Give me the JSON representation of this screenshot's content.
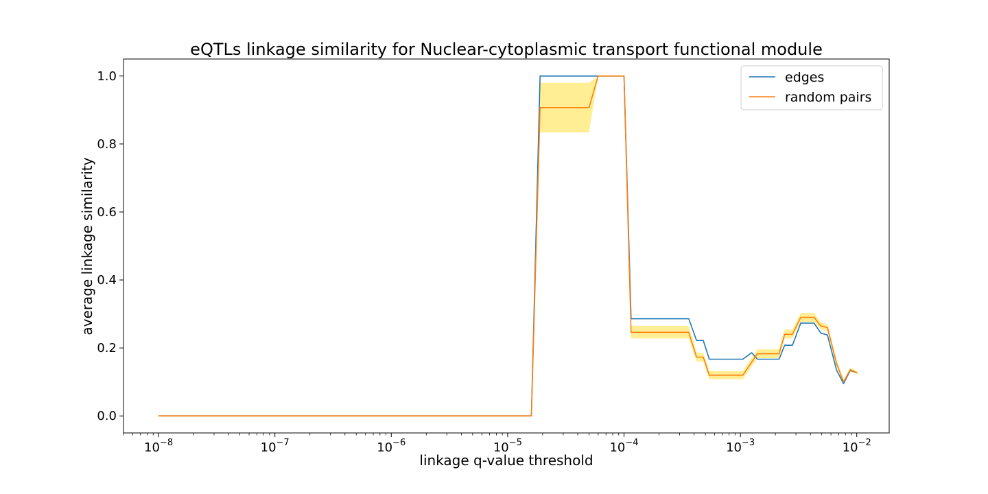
{
  "chart_data": {
    "type": "line",
    "title": "eQTLs linkage similarity for Nuclear-cytoplasmic transport functional module",
    "xlabel": "linkage q-value threshold",
    "ylabel": "average linkage similarity",
    "xscale": "log",
    "xlim": [
      5e-09,
      0.019
    ],
    "ylim": [
      -0.05,
      1.05
    ],
    "x_tick_labels": [
      {
        "exp": -8,
        "label": "10",
        "sup": "−8"
      },
      {
        "exp": -7,
        "label": "10",
        "sup": "−7"
      },
      {
        "exp": -6,
        "label": "10",
        "sup": "−6"
      },
      {
        "exp": -5,
        "label": "10",
        "sup": "−5"
      },
      {
        "exp": -4,
        "label": "10",
        "sup": "−4"
      },
      {
        "exp": -3,
        "label": "10",
        "sup": "−3"
      },
      {
        "exp": -2,
        "label": "10",
        "sup": "−2"
      }
    ],
    "y_ticks": [
      0.0,
      0.2,
      0.4,
      0.6,
      0.8,
      1.0
    ],
    "y_tick_labels": [
      "0.0",
      "0.2",
      "0.4",
      "0.6",
      "0.8",
      "1.0"
    ],
    "legend_position": "top-right",
    "grid": false,
    "series": [
      {
        "name": "edges",
        "color": "#1f77b4",
        "points": [
          [
            1e-08,
            0.0
          ],
          [
            1.6e-05,
            0.0
          ],
          [
            1.9e-05,
            1.0
          ],
          [
            5e-05,
            1.0
          ],
          [
            6e-05,
            1.0
          ],
          [
            0.0001,
            1.0
          ],
          [
            0.000115,
            0.286
          ],
          [
            0.0002,
            0.286
          ],
          [
            0.00036,
            0.286
          ],
          [
            0.00042,
            0.222
          ],
          [
            0.00048,
            0.222
          ],
          [
            0.00054,
            0.167
          ],
          [
            0.00105,
            0.167
          ],
          [
            0.00125,
            0.186
          ],
          [
            0.0014,
            0.167
          ],
          [
            0.00215,
            0.167
          ],
          [
            0.0024,
            0.208
          ],
          [
            0.0028,
            0.208
          ],
          [
            0.0033,
            0.273
          ],
          [
            0.0043,
            0.273
          ],
          [
            0.0049,
            0.244
          ],
          [
            0.0056,
            0.238
          ],
          [
            0.0067,
            0.135
          ],
          [
            0.0077,
            0.095
          ],
          [
            0.0088,
            0.134
          ],
          [
            0.0101,
            0.127
          ]
        ]
      },
      {
        "name": "random pairs",
        "color": "#ff7f0e",
        "points": [
          [
            1e-08,
            0.0
          ],
          [
            1.6e-05,
            0.0
          ],
          [
            1.9e-05,
            0.907
          ],
          [
            5e-05,
            0.907
          ],
          [
            6e-05,
            1.0
          ],
          [
            0.0001,
            1.0
          ],
          [
            0.000115,
            0.246
          ],
          [
            0.0002,
            0.246
          ],
          [
            0.00036,
            0.246
          ],
          [
            0.00042,
            0.173
          ],
          [
            0.00048,
            0.173
          ],
          [
            0.00054,
            0.12
          ],
          [
            0.00105,
            0.12
          ],
          [
            0.0014,
            0.183
          ],
          [
            0.00215,
            0.183
          ],
          [
            0.0024,
            0.24
          ],
          [
            0.0028,
            0.24
          ],
          [
            0.0033,
            0.29
          ],
          [
            0.0043,
            0.29
          ],
          [
            0.0049,
            0.265
          ],
          [
            0.0056,
            0.26
          ],
          [
            0.0067,
            0.155
          ],
          [
            0.0077,
            0.1
          ],
          [
            0.0088,
            0.136
          ],
          [
            0.0101,
            0.127
          ]
        ],
        "band": {
          "color": "#ffd700",
          "points": [
            [
              1e-08,
              0.0,
              0.0
            ],
            [
              1.6e-05,
              0.0,
              0.0
            ],
            [
              1.9e-05,
              0.834,
              0.98
            ],
            [
              5e-05,
              0.834,
              0.98
            ],
            [
              6e-05,
              1.0,
              1.0
            ],
            [
              0.0001,
              1.0,
              1.0
            ],
            [
              0.000115,
              0.228,
              0.265
            ],
            [
              0.0002,
              0.228,
              0.265
            ],
            [
              0.00036,
              0.228,
              0.265
            ],
            [
              0.00042,
              0.16,
              0.186
            ],
            [
              0.00048,
              0.16,
              0.186
            ],
            [
              0.00054,
              0.108,
              0.132
            ],
            [
              0.00105,
              0.108,
              0.132
            ],
            [
              0.0014,
              0.17,
              0.196
            ],
            [
              0.00215,
              0.17,
              0.196
            ],
            [
              0.0024,
              0.228,
              0.254
            ],
            [
              0.0028,
              0.228,
              0.254
            ],
            [
              0.0033,
              0.277,
              0.303
            ],
            [
              0.0043,
              0.277,
              0.303
            ],
            [
              0.0049,
              0.255,
              0.275
            ],
            [
              0.0056,
              0.25,
              0.27
            ],
            [
              0.0067,
              0.145,
              0.165
            ],
            [
              0.0077,
              0.094,
              0.106
            ],
            [
              0.0088,
              0.13,
              0.142
            ],
            [
              0.0101,
              0.123,
              0.131
            ]
          ]
        }
      }
    ]
  }
}
